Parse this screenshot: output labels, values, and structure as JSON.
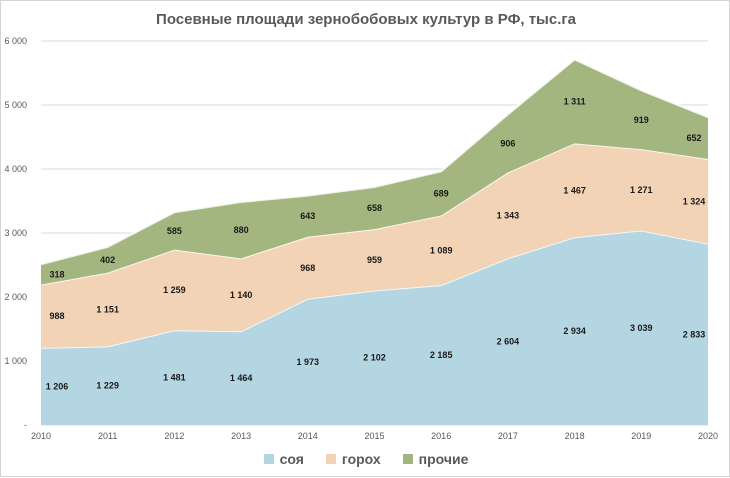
{
  "chart_data": {
    "type": "area",
    "stacked": true,
    "title": "Посевные площади зернобобовых культур в РФ, тыс.га",
    "xlabel": "",
    "ylabel": "",
    "categories": [
      "2010",
      "2011",
      "2012",
      "2013",
      "2014",
      "2015",
      "2016",
      "2017",
      "2018",
      "2019",
      "2020"
    ],
    "series": [
      {
        "name": "соя",
        "values": [
          1206,
          1229,
          1481,
          1464,
          1973,
          2102,
          2185,
          2604,
          2934,
          3039,
          2833
        ],
        "labels": [
          "1 206",
          "1 229",
          "1 481",
          "1 464",
          "1 973",
          "2 102",
          "2 185",
          "2 604",
          "2 934",
          "3 039",
          "2 833"
        ],
        "color": "#b4d6e3"
      },
      {
        "name": "горох",
        "values": [
          988,
          1151,
          1259,
          1140,
          968,
          959,
          1089,
          1343,
          1467,
          1271,
          1324
        ],
        "labels": [
          "988",
          "1 151",
          "1 259",
          "1 140",
          "968",
          "959",
          "1 089",
          "1 343",
          "1 467",
          "1 271",
          "1 324"
        ],
        "color": "#f2d3b5"
      },
      {
        "name": "прочие",
        "values": [
          318,
          402,
          585,
          880,
          643,
          658,
          689,
          906,
          1311,
          919,
          652
        ],
        "labels": [
          "318",
          "402",
          "585",
          "880",
          "643",
          "658",
          "689",
          "906",
          "1 311",
          "919",
          "652"
        ],
        "color": "#a3b67f"
      }
    ],
    "ylim": [
      0,
      6000
    ],
    "yticks": [
      0,
      1000,
      2000,
      3000,
      4000,
      5000,
      6000
    ],
    "ytick_labels": [
      "-",
      "1 000",
      "2 000",
      "3 000",
      "4 000",
      "5 000",
      "6 000"
    ],
    "grid": true,
    "legend_position": "bottom"
  }
}
